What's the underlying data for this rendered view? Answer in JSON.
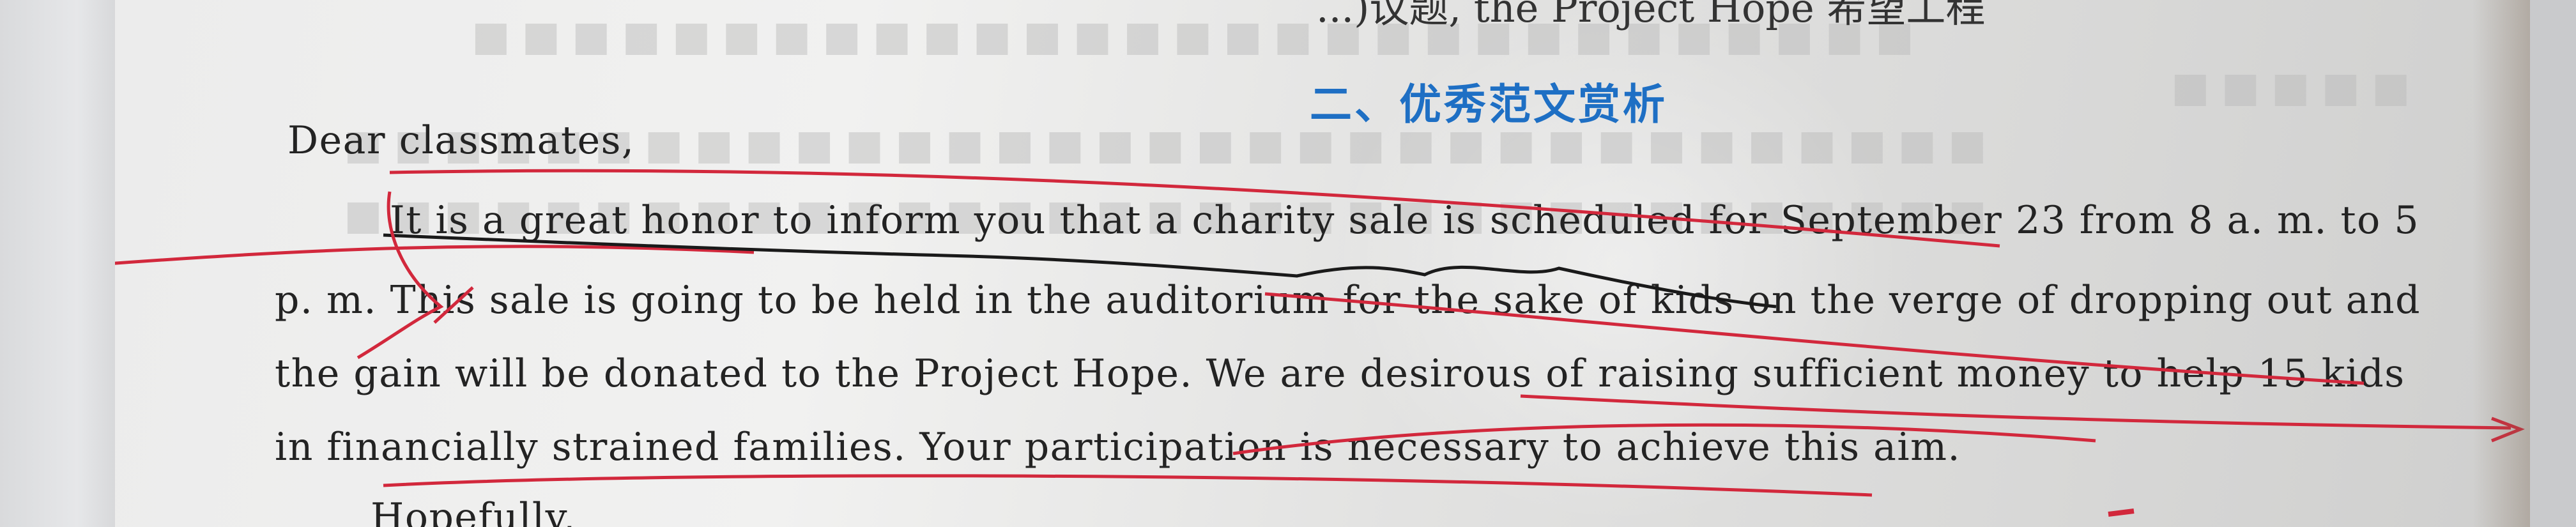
{
  "header": {
    "top_line": "...)议题, the Project Hope 希望工程"
  },
  "section": {
    "title": "二、优秀范文赏析"
  },
  "essay": {
    "salutation": "Dear classmates,",
    "lines": [
      "It is a great honor to inform you that a charity sale is scheduled for September 23 from 8 a. m.  to 5",
      "p. m.  This sale is going to be held in the auditorium for the sake of kids on the verge of dropping out and",
      "the gain will be donated to the Project Hope.  We are desirous of raising sufficient money to help 15 kids",
      "in financially strained families.  Your participation is necessary to achieve this aim.",
      "Hopefully,"
    ]
  },
  "annotations": {
    "pen_colors": [
      "#d2283c",
      "#1a1a1a"
    ]
  }
}
